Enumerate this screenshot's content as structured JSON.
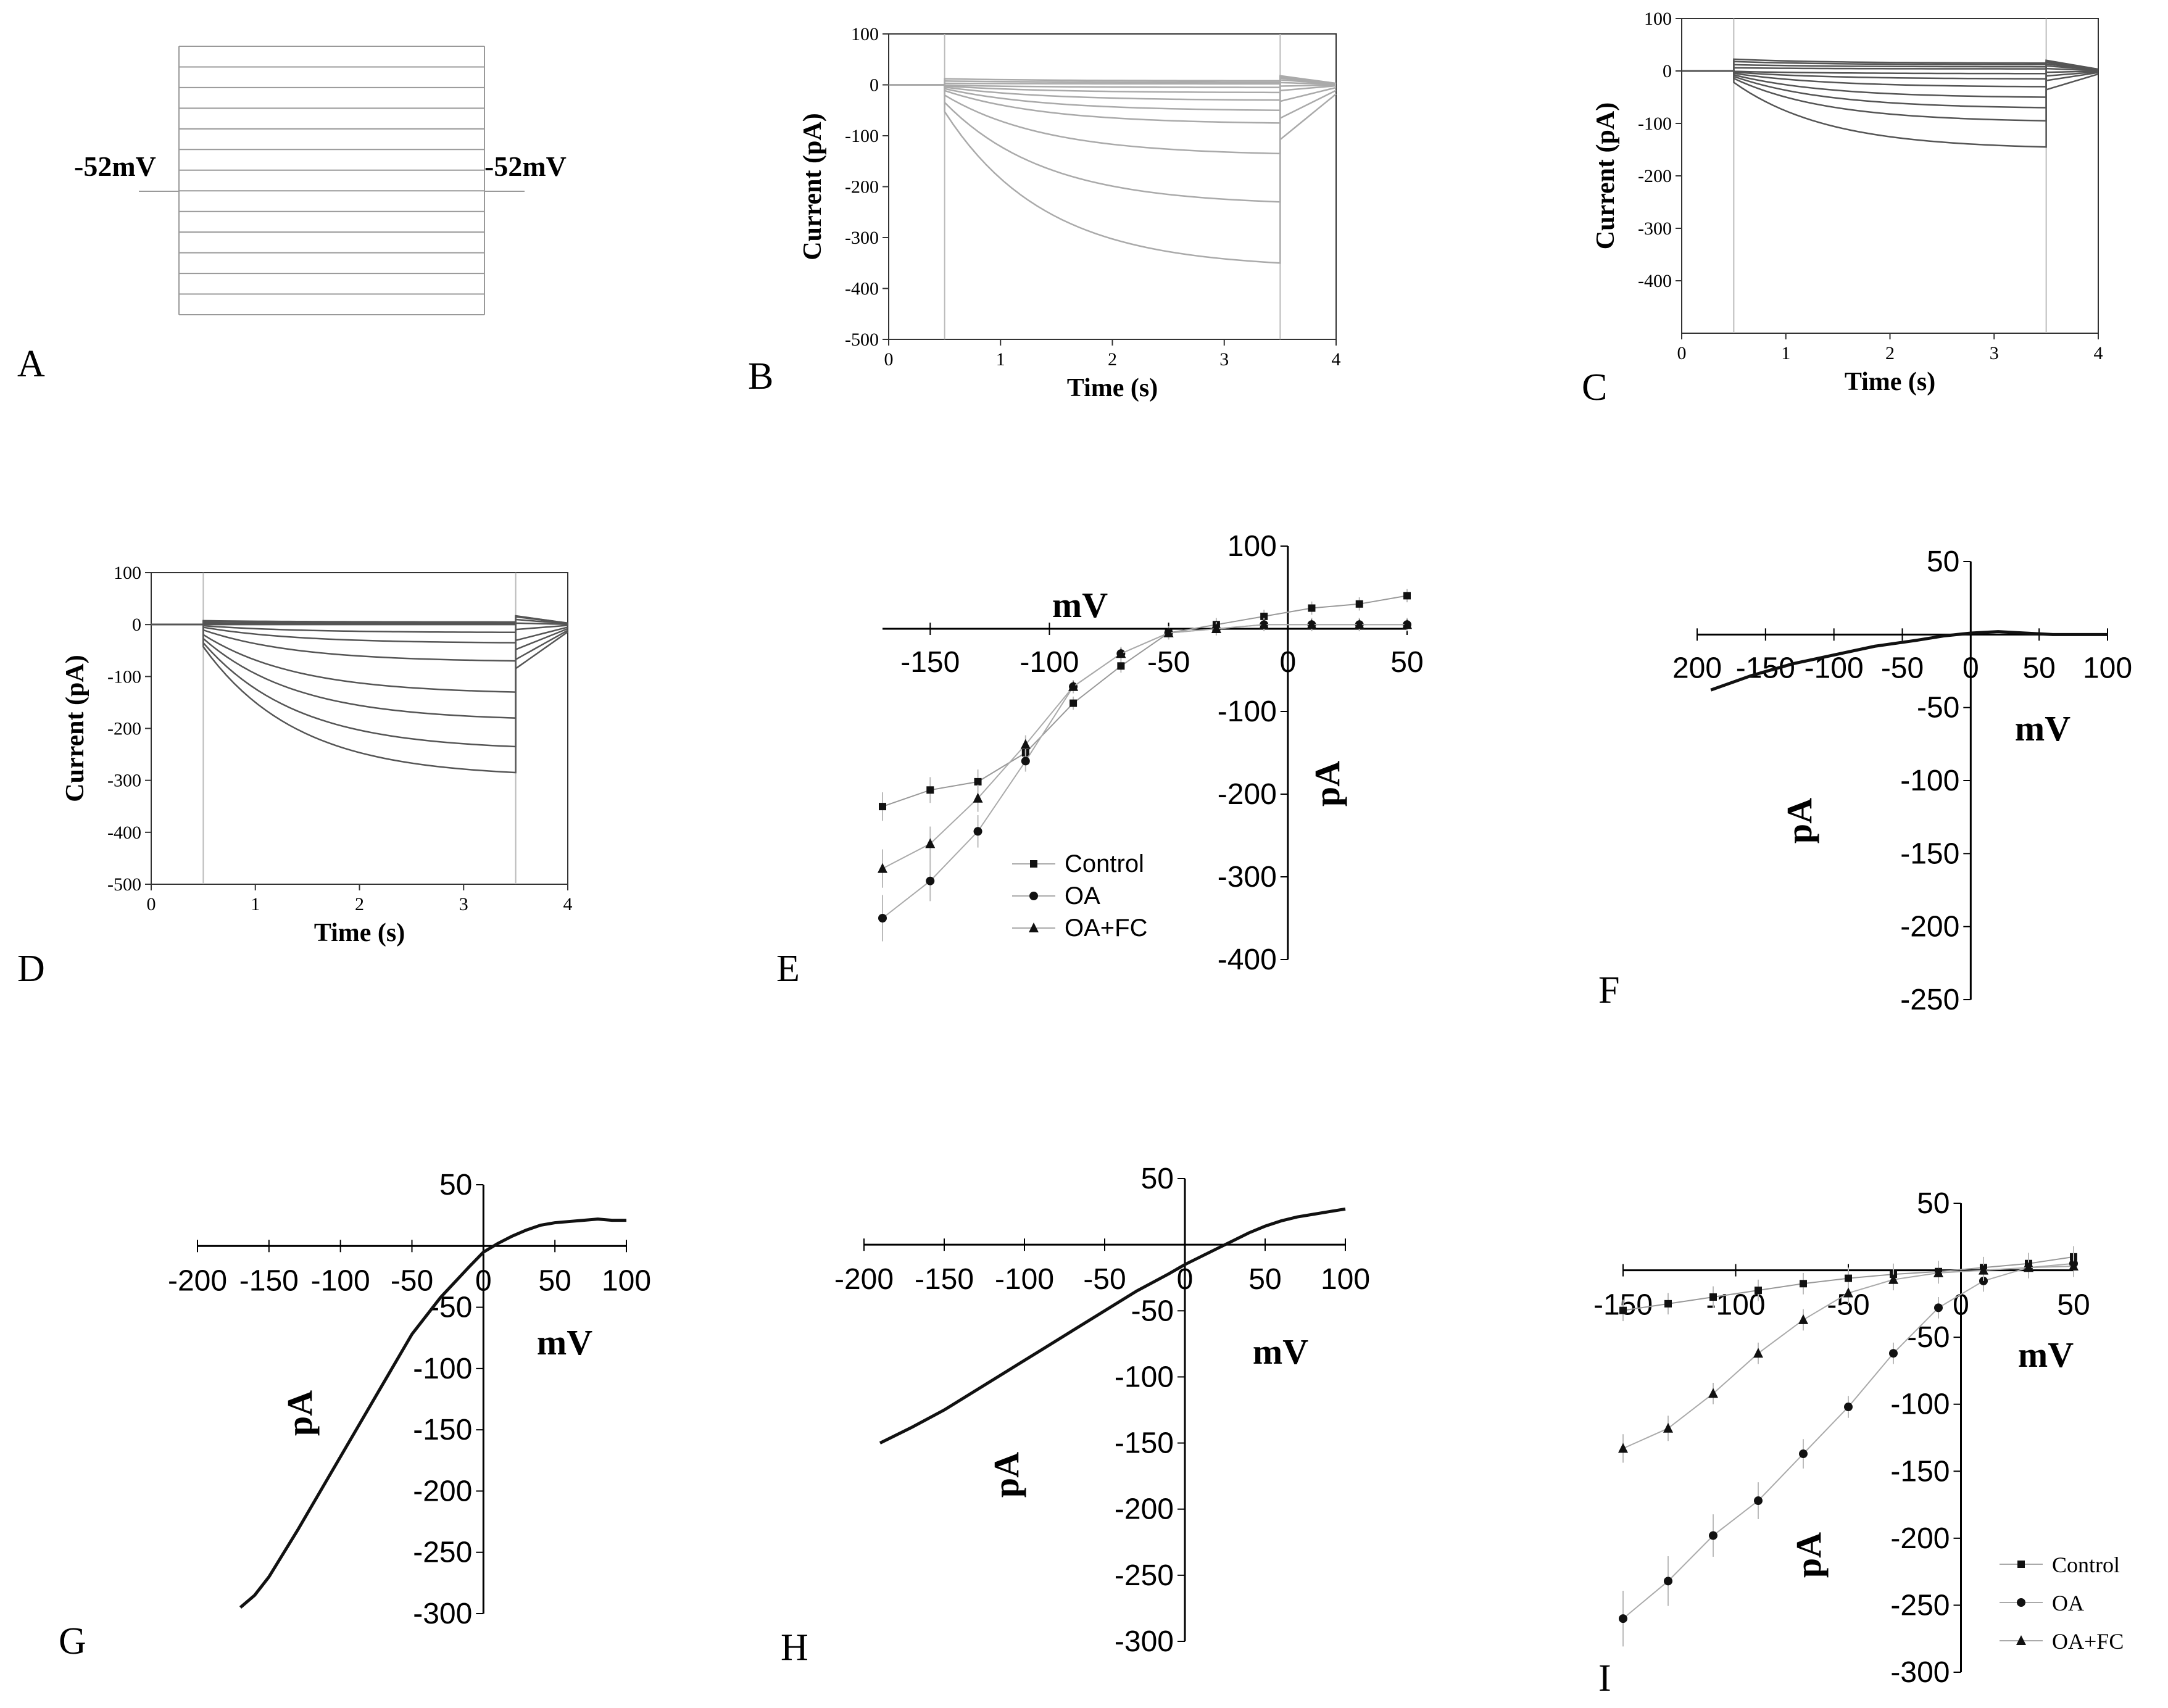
{
  "panels": {
    "A": {
      "letter": "A",
      "type": "voltage-protocol",
      "holding_label_left": "-52mV",
      "holding_label_right": "-52mV",
      "step_count": 14
    },
    "B": {
      "letter": "B",
      "chart_data": {
        "type": "line",
        "xlabel": "Time (s)",
        "ylabel": "Current (pA)",
        "xlim": [
          0,
          4
        ],
        "ylim": [
          -500,
          100
        ],
        "xticks": [
          "0",
          "1",
          "2",
          "3",
          "4"
        ],
        "yticks": [
          "-500",
          "-400",
          "-300",
          "-200",
          "-100",
          "0",
          "100"
        ],
        "step_on": 0.5,
        "step_off": 3.5,
        "traces_end_values": [
          8,
          5,
          2,
          -5,
          -15,
          -30,
          -50,
          -75,
          -135,
          -230,
          -350
        ],
        "trace_color": "#aaaaaa"
      }
    },
    "C": {
      "letter": "C",
      "chart_data": {
        "type": "line",
        "xlabel": "Time (s)",
        "ylabel": "Current (pA)",
        "xlim": [
          0,
          4
        ],
        "ylim": [
          -500,
          100
        ],
        "xticks": [
          "0",
          "1",
          "2",
          "3",
          "4"
        ],
        "yticks": [
          "-400",
          "-300",
          "-200",
          "-100",
          "0",
          "100"
        ],
        "step_on": 0.5,
        "step_off": 3.5,
        "traces_end_values": [
          15,
          12,
          8,
          4,
          -5,
          -15,
          -30,
          -50,
          -70,
          -95,
          -145
        ],
        "trace_color": "#555555"
      }
    },
    "D": {
      "letter": "D",
      "chart_data": {
        "type": "line",
        "xlabel": "Time (s)",
        "ylabel": "Current (pA)",
        "xlim": [
          0,
          4
        ],
        "ylim": [
          -500,
          100
        ],
        "xticks": [
          "0",
          "1",
          "2",
          "3",
          "4"
        ],
        "yticks": [
          "-500",
          "-400",
          "-300",
          "-200",
          "-100",
          "0",
          "100"
        ],
        "step_on": 0.5,
        "step_off": 3.5,
        "traces_end_values": [
          5,
          4,
          2,
          0,
          -15,
          -35,
          -70,
          -130,
          -180,
          -235,
          -285
        ],
        "trace_color": "#555555"
      }
    },
    "E": {
      "letter": "E",
      "chart_data": {
        "type": "scatter",
        "xlabel": "mV",
        "ylabel": "pA",
        "xlim": [
          -170,
          50
        ],
        "ylim": [
          -400,
          100
        ],
        "xticks": [
          -150,
          -100,
          -50,
          0,
          50
        ],
        "yticks": [
          100,
          -100,
          -200,
          -300,
          -400
        ],
        "x": [
          -170,
          -150,
          -130,
          -110,
          -90,
          -70,
          -50,
          -30,
          -10,
          10,
          30,
          50
        ],
        "series": [
          {
            "name": "Control",
            "marker": "square",
            "values": [
              -215,
              -195,
              -185,
              -150,
              -90,
              -45,
              -5,
              5,
              15,
              25,
              30,
              40
            ]
          },
          {
            "name": "OA",
            "marker": "circle",
            "values": [
              -350,
              -305,
              -245,
              -160,
              -70,
              -30,
              -5,
              0,
              5,
              5,
              5,
              5
            ]
          },
          {
            "name": "OA+FC",
            "marker": "triangle",
            "values": [
              -290,
              -260,
              -205,
              -140,
              -70,
              -30,
              -5,
              0,
              5,
              5,
              5,
              5
            ]
          }
        ],
        "legend": "bottom-center"
      }
    },
    "F": {
      "letter": "F",
      "chart_data": {
        "type": "line",
        "xlabel": "mV",
        "ylabel": "pA",
        "xlim": [
          -200,
          100
        ],
        "ylim": [
          -250,
          50
        ],
        "xticks": [
          "200",
          "-150",
          "-100",
          "-50",
          "0",
          "50",
          "100"
        ],
        "yticks": [
          "50",
          "-50",
          "-100",
          "-150",
          "-200",
          "-250"
        ],
        "x": [
          -190,
          -160,
          -130,
          -100,
          -70,
          -40,
          -20,
          0,
          20,
          40,
          60,
          80,
          100
        ],
        "values": [
          -38,
          -28,
          -20,
          -14,
          -8,
          -4,
          -1,
          1,
          2,
          1,
          0,
          0,
          0
        ]
      }
    },
    "G": {
      "letter": "G",
      "chart_data": {
        "type": "line",
        "xlabel": "mV",
        "ylabel": "pA",
        "xlim": [
          -200,
          100
        ],
        "ylim": [
          -300,
          50
        ],
        "xticks": [
          "-200",
          "-150",
          "-100",
          "-50",
          "0",
          "50",
          "100"
        ],
        "yticks": [
          "50",
          "-50",
          "-100",
          "-150",
          "-200",
          "-250",
          "-300"
        ],
        "x": [
          -170,
          -160,
          -150,
          -130,
          -110,
          -90,
          -70,
          -50,
          -30,
          -10,
          0,
          10,
          20,
          30,
          40,
          50,
          60,
          70,
          80,
          90,
          100
        ],
        "values": [
          -295,
          -285,
          -270,
          -232,
          -192,
          -152,
          -112,
          -72,
          -42,
          -17,
          -5,
          2,
          8,
          13,
          17,
          19,
          20,
          21,
          22,
          21,
          21
        ]
      }
    },
    "H": {
      "letter": "H",
      "chart_data": {
        "type": "line",
        "xlabel": "mV",
        "ylabel": "pA",
        "xlim": [
          -200,
          100
        ],
        "ylim": [
          -300,
          50
        ],
        "xticks": [
          "-200",
          "-150",
          "-100",
          "-50",
          "0",
          "50",
          "100"
        ],
        "yticks": [
          "50",
          "-50",
          "-100",
          "-150",
          "-200",
          "-250",
          "-300"
        ],
        "x": [
          -190,
          -170,
          -150,
          -130,
          -110,
          -90,
          -70,
          -50,
          -30,
          -10,
          0,
          10,
          20,
          30,
          40,
          50,
          60,
          70,
          80,
          90,
          100
        ],
        "values": [
          -150,
          -138,
          -125,
          -110,
          -95,
          -80,
          -65,
          -50,
          -35,
          -22,
          -15,
          -9,
          -3,
          3,
          9,
          14,
          18,
          21,
          23,
          25,
          27
        ]
      }
    },
    "I": {
      "letter": "I",
      "chart_data": {
        "type": "scatter",
        "xlabel": "mV",
        "ylabel": "pA",
        "xlim": [
          -150,
          50
        ],
        "ylim": [
          -300,
          50
        ],
        "xticks": [
          -150,
          -100,
          -50,
          0,
          50
        ],
        "yticks": [
          50,
          -50,
          -100,
          -150,
          -200,
          -250,
          -300
        ],
        "x": [
          -150,
          -130,
          -110,
          -90,
          -70,
          -50,
          -30,
          -10,
          10,
          30,
          50
        ],
        "series": [
          {
            "name": "Control",
            "marker": "square",
            "values": [
              -30,
              -25,
              -20,
              -15,
              -10,
              -6,
              -3,
              -1,
              2,
              5,
              10
            ]
          },
          {
            "name": "OA",
            "marker": "circle",
            "values": [
              -260,
              -232,
              -198,
              -172,
              -137,
              -102,
              -62,
              -28,
              -8,
              2,
              5
            ]
          },
          {
            "name": "OA+FC",
            "marker": "triangle",
            "values": [
              -133,
              -118,
              -92,
              -62,
              -37,
              -17,
              -7,
              -2,
              0,
              2,
              3
            ]
          }
        ],
        "legend": "bottom-right"
      }
    }
  }
}
